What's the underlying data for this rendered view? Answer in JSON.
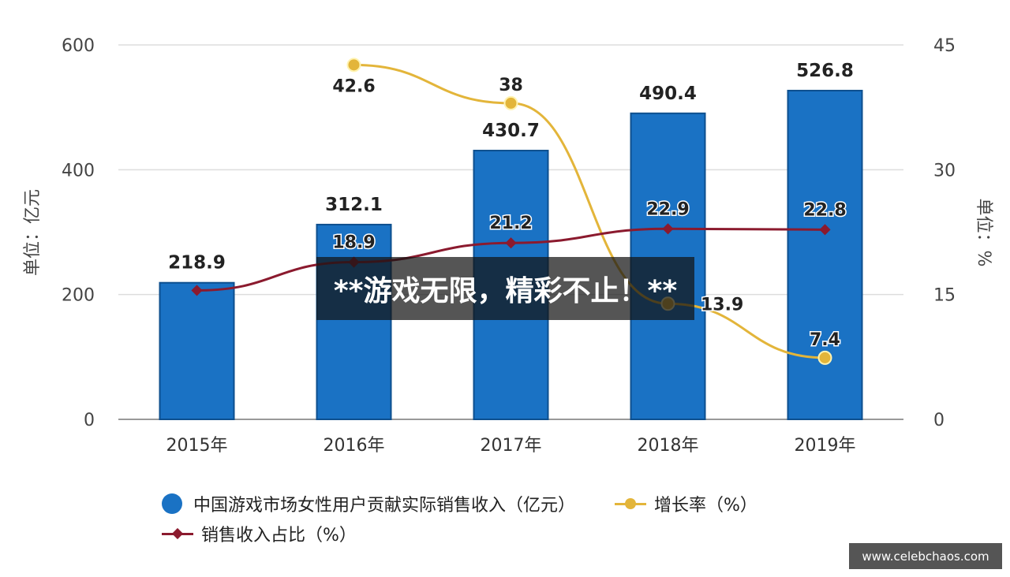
{
  "chart_data": {
    "type": "bar",
    "categories": [
      "2015年",
      "2016年",
      "2017年",
      "2018年",
      "2019年"
    ],
    "ylabel_left": "单位：亿元",
    "ylabel_right": "单位：%",
    "ylim_left": [
      0,
      600
    ],
    "ylim_right": [
      0,
      45
    ],
    "yticks_left": [
      "0",
      "200",
      "400",
      "600"
    ],
    "yticks_right": [
      "0",
      "15",
      "30",
      "45"
    ],
    "grid": true,
    "legend_placement": "bottom",
    "series": [
      {
        "name": "中国游戏市场女性用户贡献实际销售收入（亿元）",
        "type": "bar",
        "axis": "left",
        "color": "#1a72c4",
        "values": [
          218.9,
          312.1,
          430.7,
          490.4,
          526.8
        ],
        "labels": [
          "218.9",
          "312.1",
          "430.7",
          "490.4",
          "526.8"
        ]
      },
      {
        "name": "增长率（%）",
        "type": "line",
        "axis": "right",
        "color": "#e3b53a",
        "values": [
          null,
          42.6,
          38,
          13.9,
          7.4
        ],
        "labels": [
          "",
          "42.6",
          "38",
          "13.9",
          "7.4"
        ]
      },
      {
        "name": "销售收入占比（%）",
        "type": "line",
        "axis": "right",
        "color": "#8b1a2e",
        "values": [
          15.5,
          18.9,
          21.2,
          22.9,
          22.8
        ],
        "labels": [
          "",
          "18.9",
          "21.2",
          "22.9",
          "22.8"
        ]
      }
    ]
  },
  "overlay_text": "**游戏无限，精彩不止！**",
  "watermark": "www.celebchaos.com"
}
